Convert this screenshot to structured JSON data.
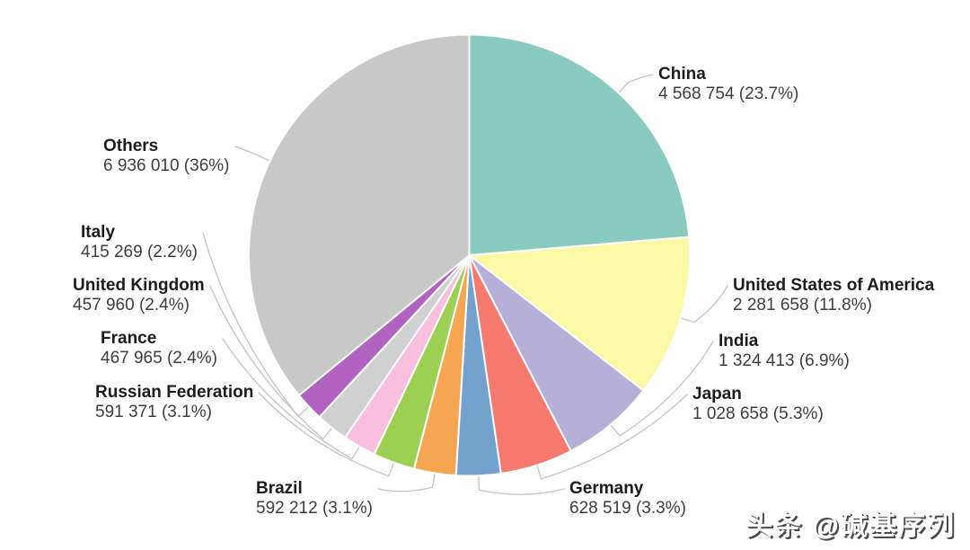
{
  "chart_data": {
    "type": "pie",
    "title": "",
    "legend_position": "none",
    "direction": "clockwise",
    "start_angle_deg": 0,
    "total": 19292789,
    "slice_border_color": "#ffffff",
    "tick_color": "#c3c3c3",
    "series": [
      {
        "label": "China",
        "value": 4568754,
        "value_percent_display": "4 568 754 (23.7%)",
        "color": "#89ccbf"
      },
      {
        "label": "United States of America",
        "value": 2281658,
        "value_percent_display": "2 281 658 (11.8%)",
        "color": "#fbf9a6"
      },
      {
        "label": "India",
        "value": 1324413,
        "value_percent_display": "1 324 413 (6.9%)",
        "color": "#b6b0d9"
      },
      {
        "label": "Japan",
        "value": 1028658,
        "value_percent_display": "1 028 658 (5.3%)",
        "color": "#f5796e"
      },
      {
        "label": "Germany",
        "value": 628519,
        "value_percent_display": "628 519 (3.3%)",
        "color": "#74a1cd"
      },
      {
        "label": "Brazil",
        "value": 592212,
        "value_percent_display": "592 212 (3.1%)",
        "color": "#f6a650"
      },
      {
        "label": "Russian Federation",
        "value": 591371,
        "value_percent_display": "591 371 (3.1%)",
        "color": "#9ccf52"
      },
      {
        "label": "France",
        "value": 467965,
        "value_percent_display": "467 965 (2.4%)",
        "color": "#f8c0dc"
      },
      {
        "label": "United Kingdom",
        "value": 457960,
        "value_percent_display": "457 960 (2.4%)",
        "color": "#d0d0d0"
      },
      {
        "label": "Italy",
        "value": 415269,
        "value_percent_display": "415 269 (2.2%)",
        "color": "#b263c1"
      },
      {
        "label": "Others",
        "value": 6936010,
        "value_percent_display": "6 936 010 (36%)",
        "color": "#c8c8c8"
      }
    ]
  },
  "watermark": {
    "text": "头条 @碱基序列"
  }
}
